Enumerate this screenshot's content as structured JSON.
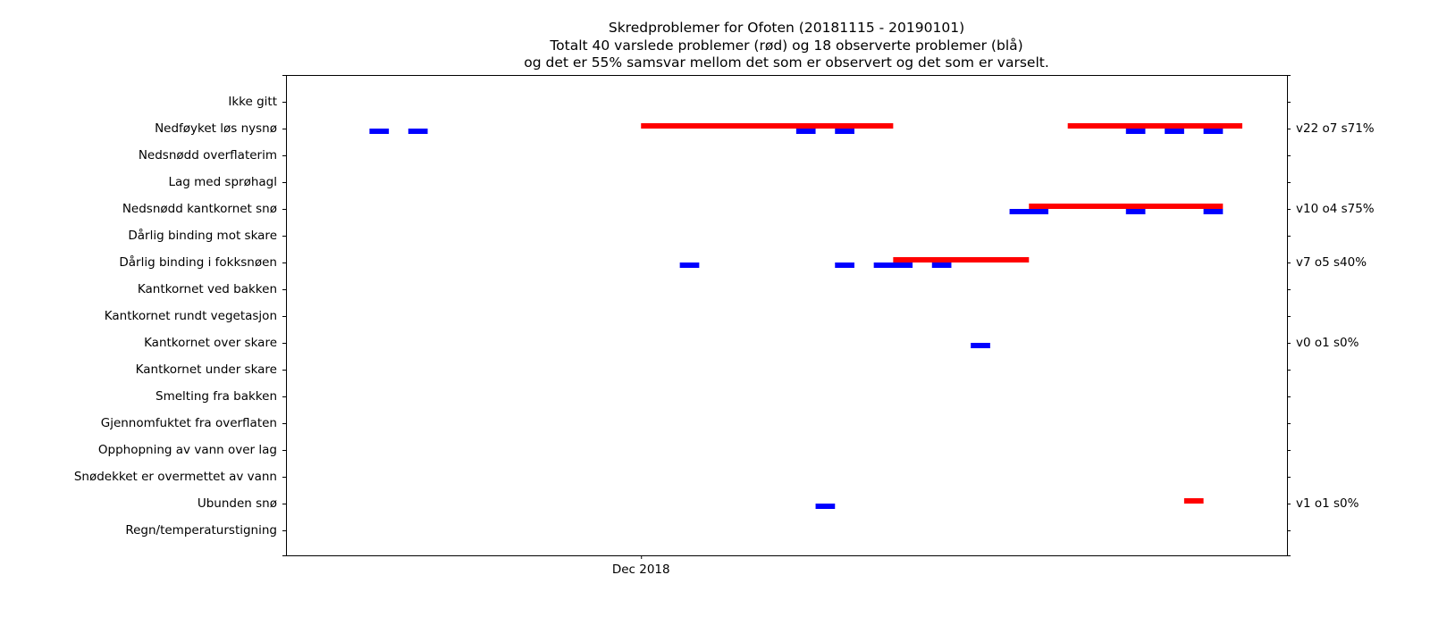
{
  "chart_data": {
    "type": "timeline",
    "title_lines": [
      "Skredproblemer for Ofoten (20181115 - 20190101)",
      "Totalt 40 varslede problemer (rød) og 18 observerte problemer (blå)",
      "og det er 55% samsvar mellom det som er observert og det som er varselt."
    ],
    "x_range": [
      "2018-11-15",
      "2019-01-01"
    ],
    "x_ticks": [
      {
        "date": "2018-12-01",
        "label": "Dec 2018"
      }
    ],
    "y_categories": [
      "Ikke gitt",
      "Nedføyket løs nysnø",
      "Nedsnødd overflaterim",
      "Lag med sprøhagl",
      "Nedsnødd kantkornet snø",
      "Dårlig binding mot skare",
      "Dårlig binding i fokksnøen",
      "Kantkornet ved bakken",
      "Kantkornet rundt vegetasjon",
      "Kantkornet over skare",
      "Kantkornet under skare",
      "Smelting fra bakken",
      "Gjennomfuktet fra overflaten",
      "Opphopning av vann over lag",
      "Snødekket er overmettet av vann",
      "Ubunden snø",
      "Regn/temperaturstigning "
    ],
    "series": [
      {
        "name": "varslede",
        "color": "#ff0000",
        "bars": [
          {
            "category": "Nedføyket løs nysnø",
            "start": "2018-12-01",
            "end": "2018-12-14"
          },
          {
            "category": "Nedføyket løs nysnø",
            "start": "2018-12-23",
            "end": "2019-01-01"
          },
          {
            "category": "Nedsnødd kantkornet snø",
            "start": "2018-12-21",
            "end": "2018-12-31"
          },
          {
            "category": "Dårlig binding i fokksnøen",
            "start": "2018-12-14",
            "end": "2018-12-21"
          },
          {
            "category": "Ubunden snø",
            "start": "2018-12-29",
            "end": "2018-12-30"
          }
        ]
      },
      {
        "name": "observerte",
        "color": "#0000ff",
        "bars": [
          {
            "category": "Nedføyket løs nysnø",
            "start": "2018-11-17",
            "end": "2018-11-18"
          },
          {
            "category": "Nedføyket løs nysnø",
            "start": "2018-11-19",
            "end": "2018-11-20"
          },
          {
            "category": "Nedføyket løs nysnø",
            "start": "2018-12-09",
            "end": "2018-12-10"
          },
          {
            "category": "Nedføyket løs nysnø",
            "start": "2018-12-11",
            "end": "2018-12-12"
          },
          {
            "category": "Nedføyket løs nysnø",
            "start": "2018-12-26",
            "end": "2018-12-27"
          },
          {
            "category": "Nedføyket løs nysnø",
            "start": "2018-12-28",
            "end": "2018-12-29"
          },
          {
            "category": "Nedføyket løs nysnø",
            "start": "2018-12-30",
            "end": "2018-12-31"
          },
          {
            "category": "Nedsnødd kantkornet snø",
            "start": "2018-12-20",
            "end": "2018-12-22"
          },
          {
            "category": "Nedsnødd kantkornet snø",
            "start": "2018-12-26",
            "end": "2018-12-27"
          },
          {
            "category": "Nedsnødd kantkornet snø",
            "start": "2018-12-30",
            "end": "2018-12-31"
          },
          {
            "category": "Dårlig binding i fokksnøen",
            "start": "2018-12-03",
            "end": "2018-12-04"
          },
          {
            "category": "Dårlig binding i fokksnøen",
            "start": "2018-12-11",
            "end": "2018-12-12"
          },
          {
            "category": "Dårlig binding i fokksnøen",
            "start": "2018-12-13",
            "end": "2018-12-15"
          },
          {
            "category": "Dårlig binding i fokksnøen",
            "start": "2018-12-16",
            "end": "2018-12-17"
          },
          {
            "category": "Kantkornet over skare",
            "start": "2018-12-18",
            "end": "2018-12-19"
          },
          {
            "category": "Ubunden snø",
            "start": "2018-12-10",
            "end": "2018-12-11"
          }
        ]
      }
    ],
    "right_labels": [
      {
        "category": "Nedføyket løs nysnø",
        "text": "v22 o7 s71%"
      },
      {
        "category": "Nedsnødd kantkornet snø",
        "text": "v10 o4 s75%"
      },
      {
        "category": "Dårlig binding i fokksnøen",
        "text": "v7 o5 s40%"
      },
      {
        "category": "Kantkornet over skare",
        "text": "v0 o1 s0%"
      },
      {
        "category": "Ubunden snø",
        "text": "v1 o1 s0%"
      }
    ]
  }
}
